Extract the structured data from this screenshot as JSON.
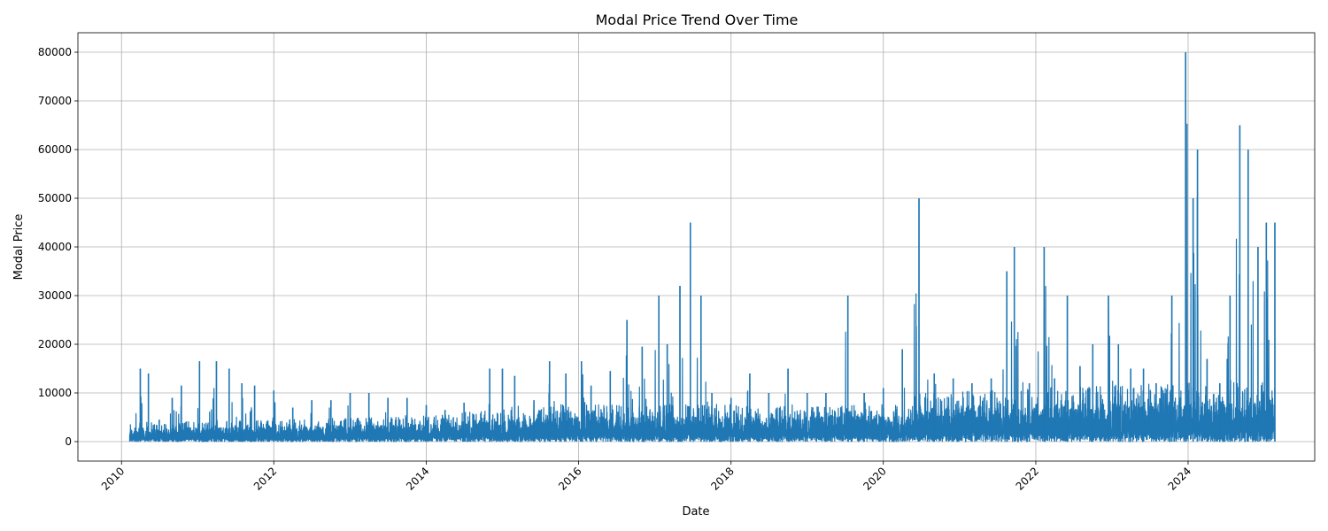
{
  "chart_data": {
    "type": "line",
    "title": "Modal Price Trend Over Time",
    "xlabel": "Date",
    "ylabel": "Modal Price",
    "xlim": [
      "2009-06-06",
      "2025-08-30"
    ],
    "ylim": [
      -4000,
      84000
    ],
    "x_ticks": [
      "2010",
      "2012",
      "2014",
      "2016",
      "2018",
      "2020",
      "2022",
      "2024"
    ],
    "y_ticks": [
      "0",
      "10000",
      "20000",
      "30000",
      "40000",
      "50000",
      "60000",
      "70000",
      "80000"
    ],
    "grid": true,
    "legend": "none",
    "line_color": "#1f77b4",
    "series": [
      {
        "x": [
          "2010-02-10",
          "2010-04-01",
          "2010-05-10",
          "2010-07-01",
          "2010-09-01",
          "2010-10-15",
          "2011-01-10",
          "2011-04-01",
          "2011-06-01",
          "2011-08-01",
          "2011-10-01",
          "2012-01-01",
          "2012-04-01",
          "2012-07-01",
          "2012-10-01",
          "2013-01-01",
          "2013-04-01",
          "2013-07-01",
          "2013-10-01",
          "2014-01-01",
          "2014-04-01",
          "2014-07-01",
          "2014-11-01",
          "2015-01-01",
          "2015-03-01",
          "2015-06-01",
          "2015-08-15",
          "2015-11-01",
          "2016-01-15",
          "2016-03-01",
          "2016-06-01",
          "2016-08-20",
          "2016-11-01",
          "2017-01-20",
          "2017-03-01",
          "2017-05-01",
          "2017-06-20",
          "2017-08-10",
          "2017-10-01",
          "2018-01-01",
          "2018-04-01",
          "2018-07-01",
          "2018-10-01",
          "2019-01-01",
          "2019-04-01",
          "2019-07-15",
          "2019-10-01",
          "2020-01-01",
          "2020-04-01",
          "2020-06-20",
          "2020-09-01",
          "2020-12-01",
          "2021-03-01",
          "2021-06-01",
          "2021-08-15",
          "2021-09-20",
          "2021-12-01",
          "2022-02-10",
          "2022-04-01",
          "2022-06-01",
          "2022-08-01",
          "2022-10-01",
          "2022-12-15",
          "2023-02-01",
          "2023-04-01",
          "2023-06-01",
          "2023-08-01",
          "2023-10-15",
          "2023-12-20",
          "2024-01-25",
          "2024-02-15",
          "2024-04-01",
          "2024-06-01",
          "2024-07-20",
          "2024-09-05",
          "2024-10-15",
          "2024-12-01",
          "2025-01-10",
          "2025-02-20"
        ],
        "values": [
          1500,
          15000,
          14000,
          4500,
          9000,
          11500,
          16500,
          16500,
          15000,
          12000,
          11500,
          10500,
          7000,
          8500,
          8500,
          10000,
          10000,
          9000,
          9000,
          7500,
          6500,
          8000,
          15000,
          15000,
          13500,
          8500,
          16500,
          14000,
          16500,
          11500,
          14500,
          25000,
          19500,
          30000,
          20000,
          32000,
          45000,
          30000,
          10000,
          9000,
          14000,
          10000,
          15000,
          10000,
          10000,
          30000,
          10000,
          11000,
          19000,
          50000,
          14000,
          13000,
          12000,
          13000,
          35000,
          40000,
          12000,
          40000,
          13000,
          30000,
          15500,
          20000,
          30000,
          20000,
          15000,
          15000,
          12000,
          30000,
          80000,
          50000,
          60000,
          17000,
          12000,
          30000,
          65000,
          60000,
          40000,
          45000,
          45000
        ]
      }
    ]
  }
}
